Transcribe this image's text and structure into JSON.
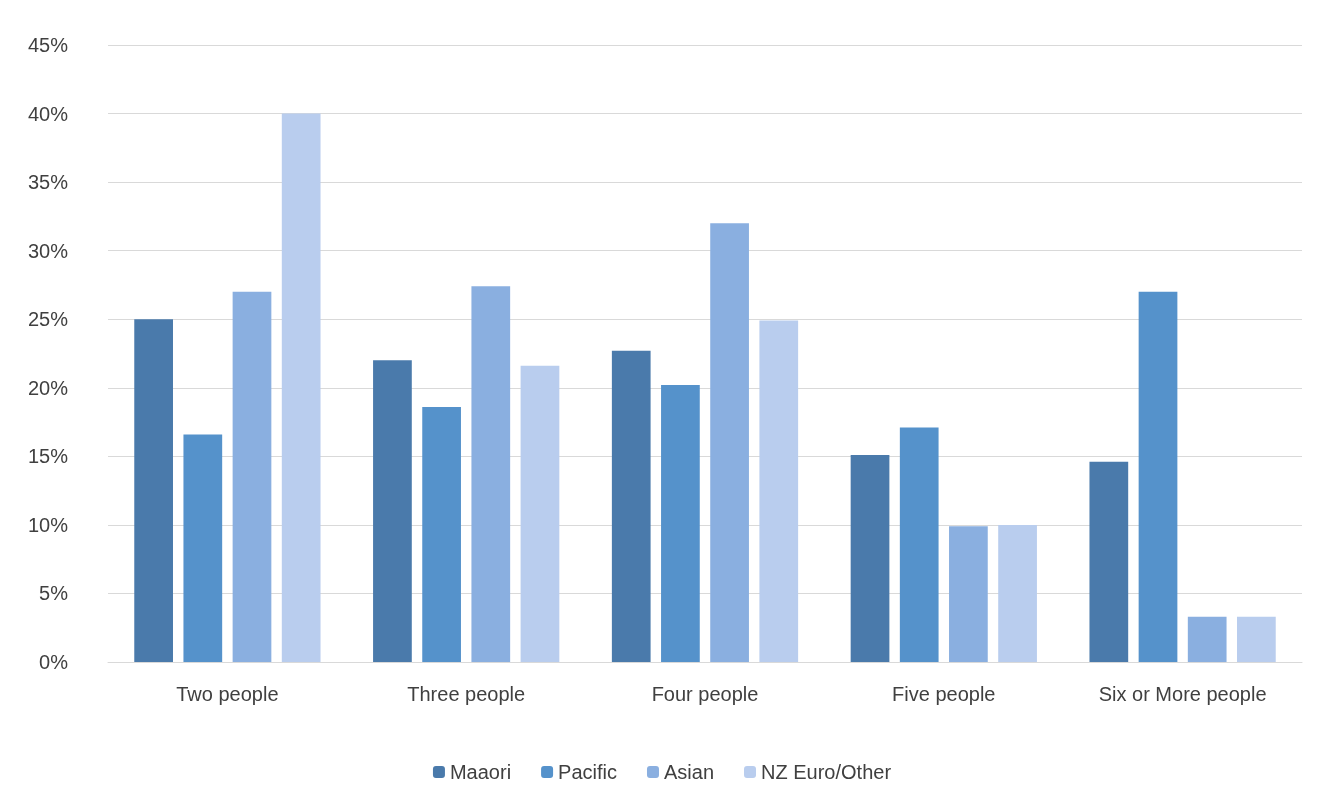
{
  "chart_data": {
    "type": "bar",
    "categories": [
      "Two people",
      "Three people",
      "Four people",
      "Five people",
      "Six or More people"
    ],
    "series": [
      {
        "name": "Maaori",
        "color": "#4a7aab",
        "values": [
          25.0,
          22.0,
          22.7,
          15.1,
          14.6
        ]
      },
      {
        "name": "Pacific",
        "color": "#5592cb",
        "values": [
          16.6,
          18.6,
          20.2,
          17.1,
          27.0
        ]
      },
      {
        "name": "Asian",
        "color": "#8aafe0",
        "values": [
          27.0,
          27.4,
          32.0,
          9.9,
          3.3
        ]
      },
      {
        "name": "NZ Euro/Other",
        "color": "#b9cdee",
        "values": [
          40.0,
          21.6,
          24.9,
          10.0,
          3.3
        ]
      }
    ],
    "ylim": [
      0,
      45
    ],
    "yticks": [
      {
        "value": 0,
        "label": "0%"
      },
      {
        "value": 5,
        "label": "5%"
      },
      {
        "value": 10,
        "label": "10%"
      },
      {
        "value": 15,
        "label": "15%"
      },
      {
        "value": 20,
        "label": "20%"
      },
      {
        "value": 25,
        "label": "25%"
      },
      {
        "value": 30,
        "label": "30%"
      },
      {
        "value": 35,
        "label": "35%"
      },
      {
        "value": 40,
        "label": "40%"
      },
      {
        "value": 45,
        "label": "45%"
      }
    ],
    "grid": "y",
    "legend": "bottom"
  }
}
